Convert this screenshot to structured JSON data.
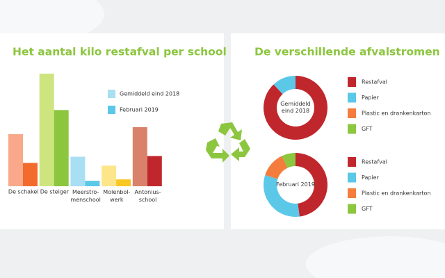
{
  "heading": "De verschillende afvalstromen",
  "chart_data": [
    {
      "type": "bar",
      "title": "Het aantal kilo restafval per school",
      "categories": [
        "De schakel",
        "De steiger",
        "Meerstro-menschool",
        "Molenbol-werk",
        "Antonius-school"
      ],
      "ylim": [
        0,
        170
      ],
      "series": [
        {
          "name": "Gemiddeld eind 2018",
          "color": "#a8dff2",
          "values": [
            76,
            164,
            43,
            30,
            86
          ],
          "colors": [
            "#f9a98a",
            "#cde47f",
            "#a8dff2",
            "#fde58a",
            "#d9816a"
          ]
        },
        {
          "name": "Februari 2019",
          "color": "#5bc8e8",
          "values": [
            34,
            111,
            8,
            10,
            44
          ],
          "colors": [
            "#f26b2d",
            "#8cc63f",
            "#5bc8e8",
            "#f9c623",
            "#c0272d"
          ]
        }
      ]
    },
    {
      "type": "pie",
      "donut": true,
      "title": "Gemiddeld eind 2018",
      "categories": [
        "Restafval",
        "Papier",
        "Plastic en drankenkarton",
        "GFT"
      ],
      "values": [
        88,
        12,
        0,
        0
      ],
      "colors": [
        "#c0272d",
        "#5bc8e8",
        "#f47c3c",
        "#8dc63f"
      ]
    },
    {
      "type": "pie",
      "donut": true,
      "title": "Februari 2019",
      "categories": [
        "Restafval",
        "Papier",
        "Plastic en drankenkarton",
        "GFT"
      ],
      "values": [
        48,
        32,
        13,
        7
      ],
      "colors": [
        "#c0272d",
        "#5bc8e8",
        "#f47c3c",
        "#8dc63f"
      ]
    }
  ]
}
